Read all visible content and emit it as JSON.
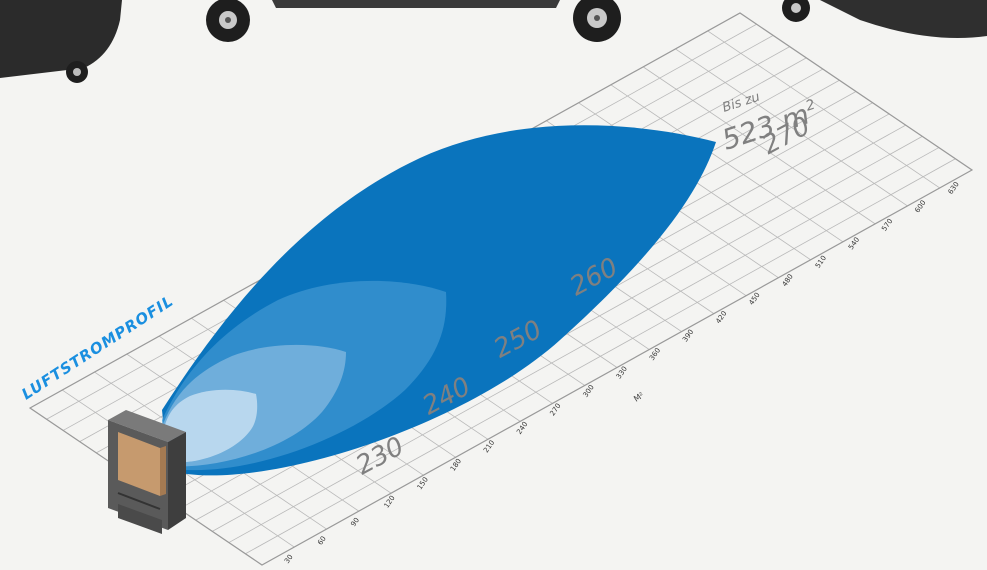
{
  "title": "LUFTSTROMPROFIL",
  "unit_label": "M²",
  "coverage": {
    "prefix": "Bis zu",
    "value": "523 m",
    "superscript": "2"
  },
  "speed_labels": [
    "230",
    "240",
    "250",
    "260",
    "270"
  ],
  "ticks": [
    "30",
    "60",
    "90",
    "120",
    "150",
    "180",
    "210",
    "240",
    "270",
    "300",
    "330",
    "360",
    "390",
    "420",
    "450",
    "480",
    "510",
    "540",
    "570",
    "600",
    "630"
  ],
  "colors": {
    "lobe_outer": "#0a74bd",
    "lobe_2": "#3a93cf",
    "lobe_3": "#7fb6de",
    "lobe_4": "#c0dcf0",
    "title": "#1a8fe0",
    "device_body": "#5a5a5a",
    "device_panel": "#c69a6e"
  },
  "icons": [
    "air-cooler-wheel-icon",
    "air-cooler-unit-icon"
  ]
}
